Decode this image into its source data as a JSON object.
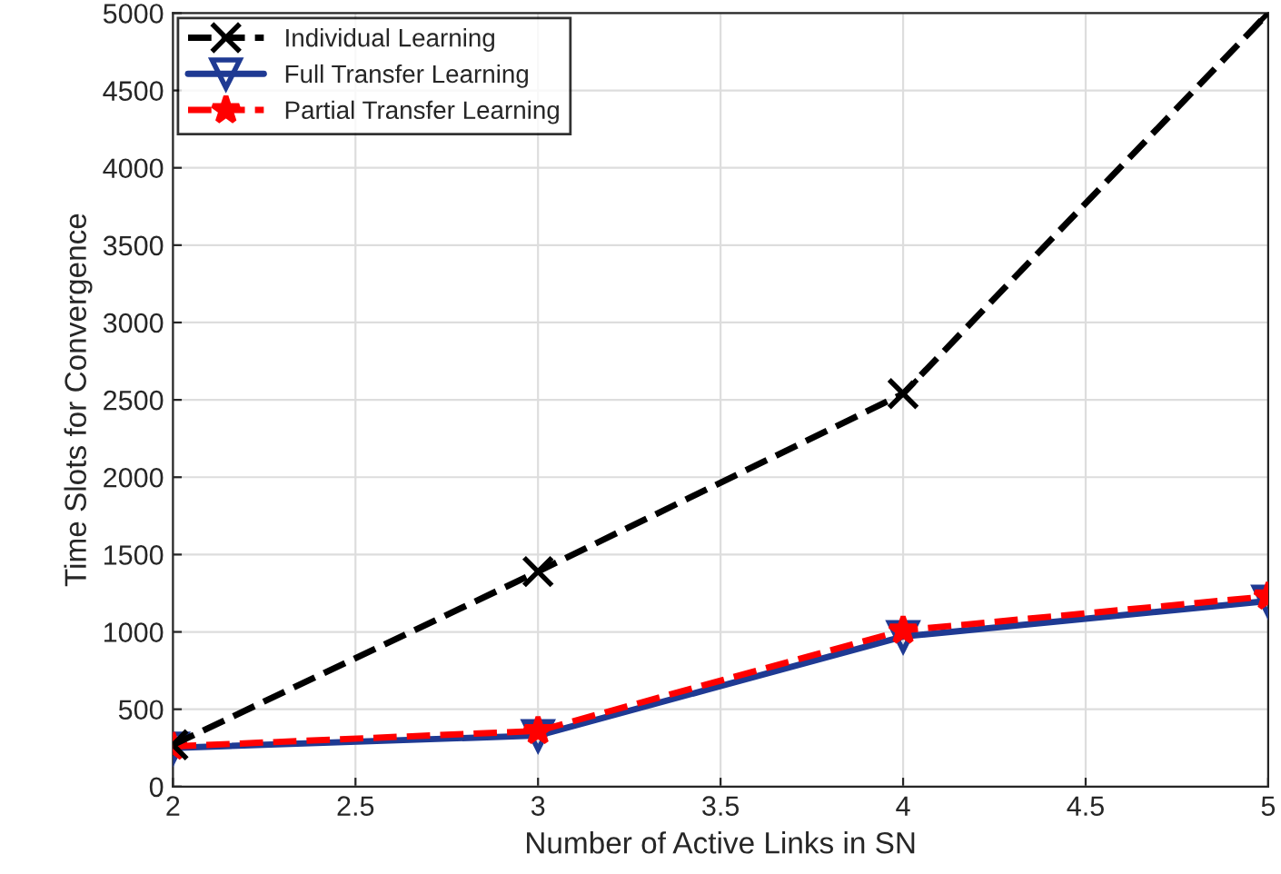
{
  "chart_data": {
    "type": "line",
    "xlabel": "Number of Active Links in SN",
    "ylabel": "Time Slots for Convergence",
    "x": [
      2,
      3,
      4,
      5
    ],
    "series": [
      {
        "name": "Individual Learning",
        "color": "#000000",
        "values": [
          270,
          1390,
          2540,
          5000
        ],
        "marker": "cross",
        "line_style": "dashed"
      },
      {
        "name": "Full Transfer Learning",
        "color": "#1f3a93",
        "values": [
          250,
          330,
          970,
          1200
        ],
        "marker": "triangle",
        "line_style": "solid"
      },
      {
        "name": "Partial Transfer Learning",
        "color": "#ff0000",
        "values": [
          260,
          360,
          1010,
          1230
        ],
        "marker": "star",
        "line_style": "dashed"
      }
    ],
    "xlim": [
      2,
      5
    ],
    "xticks": [
      2,
      2.5,
      3,
      3.5,
      4,
      4.5,
      5
    ],
    "ylim": [
      0,
      5000
    ],
    "yticks": [
      0,
      500,
      1000,
      1500,
      2000,
      2500,
      3000,
      3500,
      4000,
      4500,
      5000
    ],
    "grid": true,
    "legend": "top left"
  }
}
